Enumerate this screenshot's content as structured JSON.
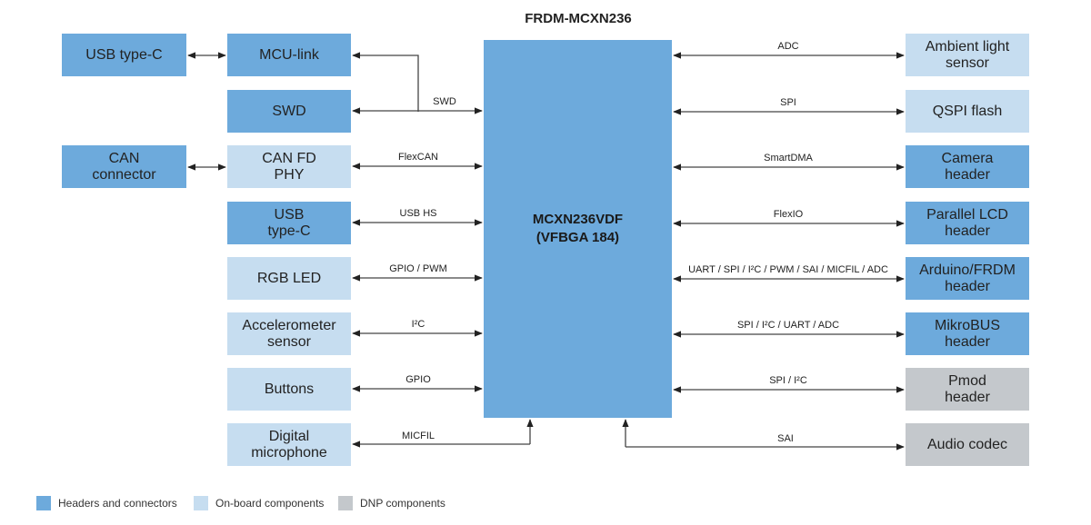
{
  "title": "FRDM-MCXN236",
  "mcu": "MCXN236VDF\n(VFBGA 184)",
  "far_left": [
    {
      "label": "USB type-C",
      "type": "dark"
    },
    {
      "label": "CAN\nconnector",
      "type": "dark"
    }
  ],
  "left": [
    {
      "label": "MCU-link",
      "type": "dark",
      "bus": ""
    },
    {
      "label": "SWD",
      "type": "dark",
      "bus": "SWD"
    },
    {
      "label": "CAN FD\nPHY",
      "type": "light",
      "bus": "FlexCAN"
    },
    {
      "label": "USB\ntype-C",
      "type": "dark",
      "bus": "USB HS"
    },
    {
      "label": "RGB LED",
      "type": "light",
      "bus": "GPIO / PWM"
    },
    {
      "label": "Accelerometer\nsensor",
      "type": "light",
      "bus": "I²C"
    },
    {
      "label": "Buttons",
      "type": "light",
      "bus": "GPIO"
    },
    {
      "label": "Digital\nmicrophone",
      "type": "light",
      "bus": "MICFIL"
    }
  ],
  "right": [
    {
      "label": "Ambient light\nsensor",
      "type": "light",
      "bus": "ADC"
    },
    {
      "label": "QSPI flash",
      "type": "light",
      "bus": "SPI"
    },
    {
      "label": "Camera\nheader",
      "type": "dark",
      "bus": "SmartDMA"
    },
    {
      "label": "Parallel LCD\nheader",
      "type": "dark",
      "bus": "FlexIO"
    },
    {
      "label": "Arduino/FRDM\nheader",
      "type": "dark",
      "bus": "UART / SPI / I²C / PWM / SAI / MICFIL / ADC"
    },
    {
      "label": "MikroBUS\nheader",
      "type": "dark",
      "bus": "SPI / I²C / UART / ADC"
    },
    {
      "label": "Pmod\nheader",
      "type": "gray",
      "bus": "SPI / I²C"
    },
    {
      "label": "Audio codec",
      "type": "gray",
      "bus": "SAI"
    }
  ],
  "legend": [
    {
      "label": "Headers and connectors",
      "color": "#6daadc"
    },
    {
      "label": "On-board components",
      "color": "#c6ddf0"
    },
    {
      "label": "DNP components",
      "color": "#c4c8cc"
    }
  ]
}
